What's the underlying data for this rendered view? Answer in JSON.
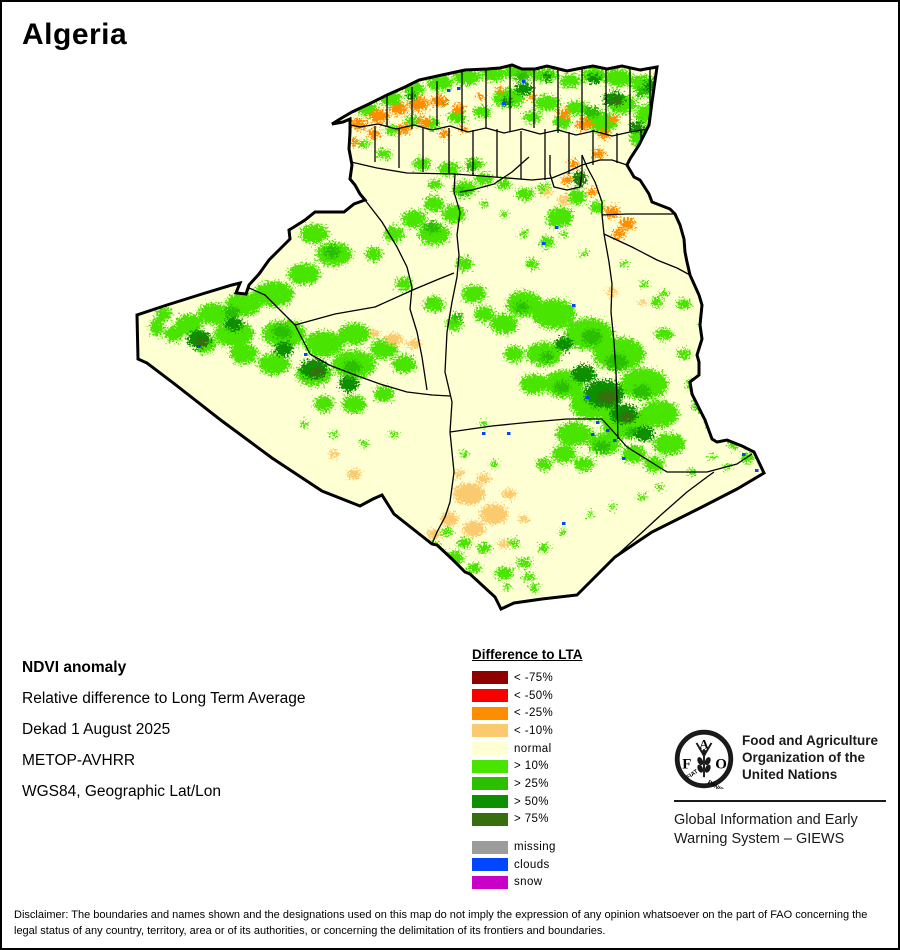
{
  "title": "Algeria",
  "info": {
    "heading": "NDVI anomaly",
    "lines": [
      "Relative difference to Long Term Average",
      "Dekad 1 August 2025",
      "METOP-AVHRR",
      "WGS84, Geographic Lat/Lon"
    ]
  },
  "legend": {
    "title": "Difference to LTA",
    "items": [
      {
        "label": "< -75%",
        "color": "#8F0000"
      },
      {
        "label": "< -50%",
        "color": "#F80000"
      },
      {
        "label": "< -25%",
        "color": "#FF8D00"
      },
      {
        "label": "< -10%",
        "color": "#FBCA6E"
      },
      {
        "label": "normal",
        "color": "#FEFFD2"
      },
      {
        "label": "> 10%",
        "color": "#49E500"
      },
      {
        "label": "> 25%",
        "color": "#2BBF00"
      },
      {
        "label": "> 50%",
        "color": "#0D8F00"
      },
      {
        "label": "> 75%",
        "color": "#376E10"
      }
    ],
    "flags": [
      {
        "label": "missing",
        "color": "#9C9C9C"
      },
      {
        "label": "clouds",
        "color": "#0047FF"
      },
      {
        "label": "snow",
        "color": "#C800C8"
      }
    ]
  },
  "map": {
    "country": "Algeria",
    "base_color": "#FEFFD2",
    "border_color": "#000000",
    "cloud_color": "#0047FF"
  },
  "fao": {
    "logo_letter_top": "A",
    "logo_letter_left": "F",
    "logo_letter_right": "O",
    "logo_motto_left": "FIAT",
    "logo_motto_right": "PANIS",
    "org_lines": [
      "Food and Agriculture",
      "Organization of the",
      "United Nations"
    ],
    "giews_lines": [
      "Global Information and Early",
      "Warning System – GIEWS"
    ]
  },
  "disclaimer": "Disclaimer: The boundaries and names shown and the designations used on this map do not imply the expression of any opinion whatsoever on the part of FAO concerning the legal status of any country, territory, area or of its authorities, or concerning the delimitation of its frontiers and boundaries."
}
